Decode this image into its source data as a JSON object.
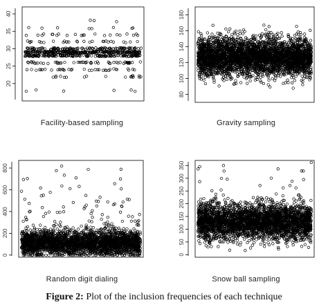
{
  "figure_caption": {
    "label": "Figure 2:",
    "text": "Plot of the inclusion frequencies of each technique"
  },
  "colors": {
    "points": "#000000",
    "frame": "#000000",
    "accent_bar": "#d9eef2"
  },
  "chart_data": [
    {
      "type": "scatter",
      "panel": "facility",
      "xlabel": "Facility-based sampling",
      "ylim": [
        15,
        42
      ],
      "yticks": [
        20,
        25,
        30,
        35,
        40
      ],
      "bands": [
        {
          "y": 18,
          "n": 6
        },
        {
          "y": 22,
          "n": 18
        },
        {
          "y": 24,
          "n": 35
        },
        {
          "y": 26,
          "n": 55
        },
        {
          "y": 28,
          "n": 170
        },
        {
          "y": 29,
          "n": 260
        },
        {
          "y": 30,
          "n": 120
        },
        {
          "y": 32,
          "n": 28
        },
        {
          "y": 34,
          "n": 22
        },
        {
          "y": 36,
          "n": 8
        },
        {
          "y": 38,
          "n": 3
        }
      ]
    },
    {
      "type": "scatter",
      "panel": "gravity",
      "xlabel": "Gravity sampling",
      "ylim": [
        70,
        190
      ],
      "yticks": [
        80,
        100,
        120,
        140,
        160,
        180
      ],
      "mean": 127,
      "sd": 12,
      "n_points": 3500
    },
    {
      "type": "scatter",
      "panel": "rdd",
      "xlabel": "Random digit dialing",
      "ylim": [
        -20,
        870
      ],
      "yticks": [
        0,
        200,
        400,
        600,
        800
      ],
      "mean": 110,
      "sd": 55,
      "n_points": 2600,
      "outliers": 130
    },
    {
      "type": "scatter",
      "panel": "snowball",
      "xlabel": "Snow ball sampling",
      "ylim": [
        -10,
        370
      ],
      "yticks": [
        0,
        50,
        100,
        150,
        200,
        250,
        300,
        350
      ],
      "mean": 130,
      "sd": 35,
      "n_points": 3000,
      "outliers": 60
    }
  ]
}
